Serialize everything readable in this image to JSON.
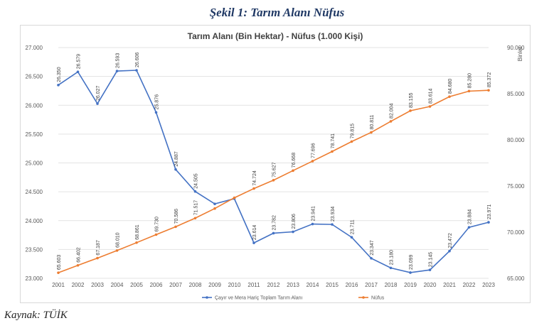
{
  "figure_title": "Şekil 1: Tarım Alanı Nüfus",
  "source": "Kaynak: TÜİK",
  "chart_data": {
    "type": "line",
    "title": "Tarım Alanı (Bin Hektar) - Nüfus (1.000 Kişi)",
    "x": [
      "2001",
      "2002",
      "2003",
      "2004",
      "2005",
      "2006",
      "2007",
      "2008",
      "2009",
      "2010",
      "2011",
      "2012",
      "2013",
      "2014",
      "2015",
      "2016",
      "2017",
      "2018",
      "2019",
      "2020",
      "2021",
      "2022",
      "2023"
    ],
    "y_left": {
      "ylim": [
        23000,
        27000
      ],
      "ticks": [
        "23.000",
        "23.500",
        "24.000",
        "24.500",
        "25.000",
        "25.500",
        "26.000",
        "26.500",
        "27.000"
      ]
    },
    "y_right": {
      "label": "Binler",
      "ylim": [
        65000,
        90000
      ],
      "ticks": [
        "65.000",
        "70.000",
        "75.000",
        "80.000",
        "85.000",
        "90.000"
      ]
    },
    "grid": true,
    "legend": "bottom",
    "series": [
      {
        "name": "Çayır ve Mera Hariç Toplam Tarım Alanı",
        "axis": "left",
        "color": "#4472c4",
        "values": [
          26350,
          26579,
          26027,
          26593,
          26606,
          25876,
          24887,
          24505,
          24290,
          24380,
          23614,
          23782,
          23806,
          23941,
          23934,
          23711,
          23347,
          23180,
          23099,
          23145,
          23472,
          23884,
          23971
        ],
        "labels": [
          "26.350",
          "26.579",
          "26.027",
          "26.593",
          "26.606",
          "25.876",
          "24.887",
          "24.505",
          null,
          null,
          "23.614",
          "23.782",
          "23.806",
          "23.941",
          "23.934",
          "23.711",
          "23.347",
          "23.180",
          "23.099",
          "23.145",
          "23.472",
          "23.884",
          "23.971"
        ]
      },
      {
        "name": "Nüfus",
        "axis": "right",
        "color": "#ed7d31",
        "values": [
          65603,
          66402,
          67187,
          68010,
          68861,
          69730,
          70586,
          71517,
          72561,
          73723,
          74724,
          75627,
          76668,
          77696,
          78741,
          79815,
          80811,
          82004,
          83155,
          83614,
          84680,
          85280,
          85372
        ],
        "labels": [
          "65.603",
          "66.402",
          "67.187",
          "68.010",
          "68.861",
          "69.730",
          "70.586",
          "71.517",
          null,
          null,
          "74.724",
          "75.627",
          "76.668",
          "77.696",
          "78.741",
          "79.815",
          "80.811",
          "82.004",
          "83.155",
          "83.614",
          "84.680",
          "85.280",
          "85.372"
        ]
      }
    ]
  }
}
